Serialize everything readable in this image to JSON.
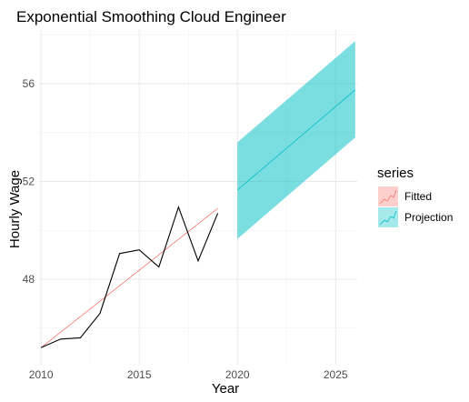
{
  "chart_data": {
    "type": "line",
    "title": "Exponential Smoothing Cloud Engineer",
    "xlabel": "Year",
    "ylabel": "Hourly Wage",
    "xlim": [
      2009.9,
      2026.1
    ],
    "ylim": [
      44.5,
      58.2
    ],
    "x_ticks": [
      2010,
      2015,
      2020,
      2025
    ],
    "y_ticks": [
      48,
      52,
      56
    ],
    "grid": true,
    "actual": {
      "x": [
        2010,
        2011,
        2012,
        2013,
        2014,
        2015,
        2016,
        2017,
        2018,
        2019
      ],
      "y": [
        45.2,
        45.55,
        45.6,
        46.6,
        49.05,
        49.2,
        48.5,
        50.95,
        48.75,
        50.7
      ]
    },
    "series": [
      {
        "name": "Fitted",
        "color": "#F8766D",
        "x": [
          2010,
          2019
        ],
        "y": [
          45.2,
          50.9
        ]
      },
      {
        "name": "Projection",
        "color": "#00BFC4",
        "x": [
          2020,
          2026
        ],
        "y": [
          51.65,
          55.75
        ],
        "lower": [
          49.65,
          53.8
        ],
        "upper": [
          53.6,
          57.75
        ]
      }
    ],
    "legend": {
      "title": "series",
      "position": "right"
    }
  }
}
